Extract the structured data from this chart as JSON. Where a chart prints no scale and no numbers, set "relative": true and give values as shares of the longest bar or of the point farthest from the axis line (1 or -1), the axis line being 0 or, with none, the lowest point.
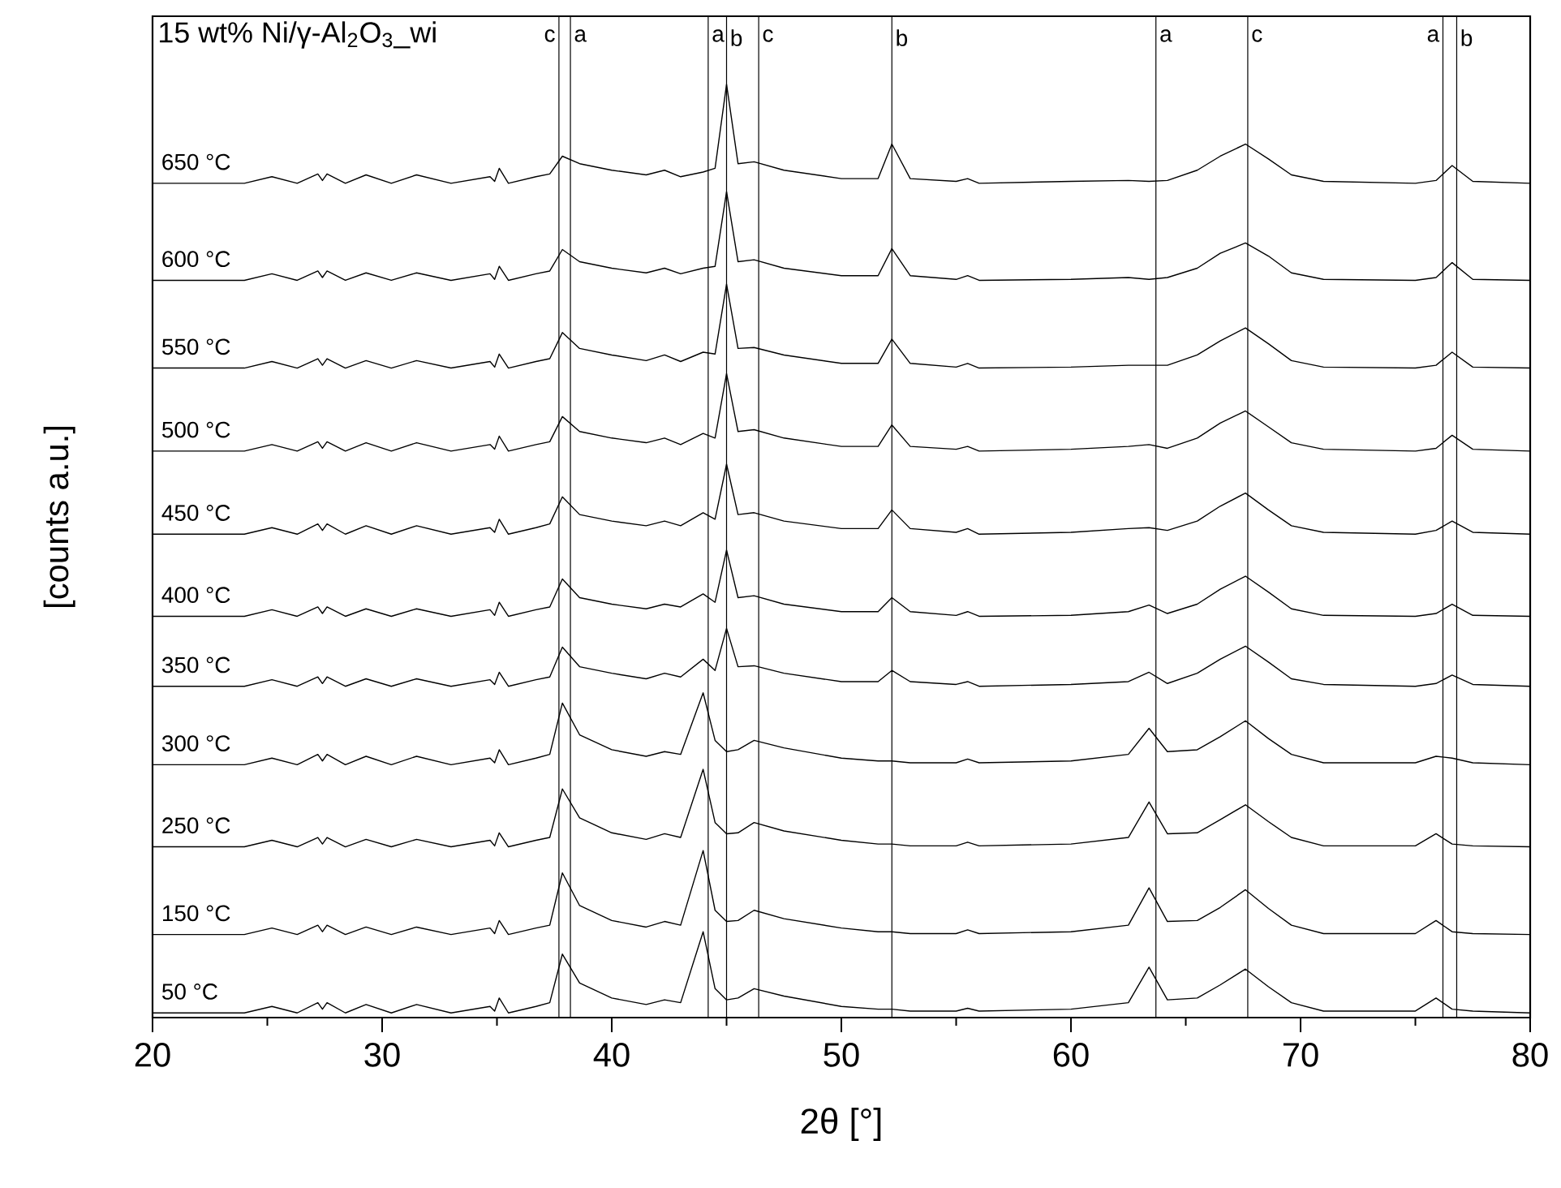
{
  "chart_data": {
    "type": "line",
    "title": "15 wt% Ni/γ-Al$_{2}$O$_{3}$_wi",
    "xlabel": "2θ [°]",
    "ylabel": "[counts a.u.]",
    "relative": true,
    "tick_labels": "x",
    "xlim": [
      20,
      80
    ],
    "xticks": [
      20,
      {
        "value": 25,
        "label": null
      },
      30,
      {
        "value": 35,
        "label": null
      },
      40,
      {
        "value": 45,
        "label": null
      },
      50,
      {
        "value": 55,
        "label": null
      },
      60,
      {
        "value": 65,
        "label": null
      },
      70,
      {
        "value": 75,
        "label": null
      },
      80
    ],
    "x": [
      20,
      24,
      25.2,
      26.3,
      27.2,
      27.4,
      27.6,
      28.4,
      29.3,
      30.4,
      31.5,
      33.0,
      34.7,
      34.9,
      35.1,
      35.5,
      36.7,
      37.3,
      37.85,
      38.6,
      40.0,
      41.5,
      42.3,
      43.0,
      43.98,
      44.5,
      45.0,
      45.5,
      46.2,
      47.5,
      50.0,
      51.6,
      52.2,
      53.0,
      55.0,
      55.5,
      56.0,
      60.0,
      62.5,
      63.4,
      64.2,
      65.5,
      66.5,
      67.6,
      68.6,
      69.6,
      71.0,
      75.0,
      75.9,
      76.6,
      77.5,
      80
    ],
    "series": [
      {
        "name": "650 °C",
        "color": "#000000",
        "values": [
          0.894,
          0.894,
          0.901,
          0.894,
          0.904,
          0.897,
          0.904,
          0.894,
          0.903,
          0.894,
          0.903,
          0.894,
          0.901,
          0.896,
          0.91,
          0.894,
          0.901,
          0.904,
          0.923,
          0.915,
          0.908,
          0.903,
          0.908,
          0.901,
          0.906,
          0.91,
          1.0,
          0.915,
          0.917,
          0.908,
          0.899,
          0.899,
          0.936,
          0.899,
          0.896,
          0.899,
          0.894,
          0.896,
          0.897,
          0.896,
          0.897,
          0.908,
          0.923,
          0.936,
          0.92,
          0.903,
          0.896,
          0.894,
          0.897,
          0.913,
          0.896,
          0.894
        ]
      },
      {
        "name": "600 °C",
        "color": "#000000",
        "values": [
          0.79,
          0.79,
          0.797,
          0.79,
          0.8,
          0.793,
          0.8,
          0.79,
          0.798,
          0.79,
          0.798,
          0.79,
          0.797,
          0.791,
          0.805,
          0.79,
          0.797,
          0.8,
          0.823,
          0.81,
          0.803,
          0.798,
          0.803,
          0.797,
          0.803,
          0.805,
          0.885,
          0.81,
          0.812,
          0.803,
          0.795,
          0.795,
          0.824,
          0.795,
          0.791,
          0.795,
          0.79,
          0.791,
          0.793,
          0.791,
          0.793,
          0.803,
          0.819,
          0.83,
          0.816,
          0.798,
          0.791,
          0.79,
          0.793,
          0.809,
          0.791,
          0.79
        ]
      },
      {
        "name": "550 °C",
        "color": "#000000",
        "values": [
          0.696,
          0.696,
          0.703,
          0.696,
          0.706,
          0.699,
          0.706,
          0.696,
          0.704,
          0.696,
          0.704,
          0.696,
          0.703,
          0.697,
          0.711,
          0.696,
          0.703,
          0.706,
          0.734,
          0.717,
          0.71,
          0.704,
          0.71,
          0.703,
          0.713,
          0.711,
          0.786,
          0.717,
          0.718,
          0.71,
          0.701,
          0.701,
          0.727,
          0.701,
          0.697,
          0.701,
          0.696,
          0.697,
          0.699,
          0.699,
          0.699,
          0.71,
          0.725,
          0.739,
          0.722,
          0.704,
          0.697,
          0.696,
          0.699,
          0.713,
          0.697,
          0.696
        ]
      },
      {
        "name": "500 °C",
        "color": "#000000",
        "values": [
          0.607,
          0.607,
          0.614,
          0.607,
          0.617,
          0.61,
          0.617,
          0.607,
          0.616,
          0.607,
          0.616,
          0.607,
          0.614,
          0.609,
          0.623,
          0.607,
          0.614,
          0.617,
          0.644,
          0.628,
          0.621,
          0.616,
          0.621,
          0.614,
          0.626,
          0.621,
          0.69,
          0.628,
          0.63,
          0.621,
          0.612,
          0.612,
          0.635,
          0.612,
          0.609,
          0.612,
          0.607,
          0.609,
          0.612,
          0.614,
          0.61,
          0.621,
          0.637,
          0.65,
          0.633,
          0.616,
          0.609,
          0.607,
          0.61,
          0.624,
          0.609,
          0.607
        ]
      },
      {
        "name": "450 °C",
        "color": "#000000",
        "values": [
          0.518,
          0.518,
          0.525,
          0.518,
          0.529,
          0.522,
          0.529,
          0.518,
          0.527,
          0.518,
          0.527,
          0.518,
          0.525,
          0.52,
          0.534,
          0.518,
          0.525,
          0.529,
          0.558,
          0.539,
          0.532,
          0.527,
          0.532,
          0.527,
          0.541,
          0.534,
          0.593,
          0.539,
          0.541,
          0.532,
          0.524,
          0.524,
          0.544,
          0.524,
          0.52,
          0.524,
          0.518,
          0.52,
          0.524,
          0.525,
          0.522,
          0.532,
          0.548,
          0.562,
          0.544,
          0.527,
          0.52,
          0.518,
          0.522,
          0.532,
          0.52,
          0.518
        ]
      },
      {
        "name": "400 °C",
        "color": "#000000",
        "values": [
          0.43,
          0.43,
          0.437,
          0.43,
          0.44,
          0.433,
          0.44,
          0.43,
          0.438,
          0.43,
          0.438,
          0.43,
          0.437,
          0.431,
          0.445,
          0.43,
          0.437,
          0.44,
          0.47,
          0.45,
          0.443,
          0.438,
          0.443,
          0.44,
          0.454,
          0.445,
          0.501,
          0.45,
          0.452,
          0.443,
          0.435,
          0.435,
          0.45,
          0.435,
          0.431,
          0.435,
          0.43,
          0.431,
          0.435,
          0.442,
          0.433,
          0.443,
          0.459,
          0.473,
          0.456,
          0.438,
          0.431,
          0.43,
          0.433,
          0.443,
          0.431,
          0.43
        ]
      },
      {
        "name": "350 °C",
        "color": "#000000",
        "values": [
          0.355,
          0.355,
          0.362,
          0.355,
          0.365,
          0.358,
          0.365,
          0.355,
          0.363,
          0.355,
          0.363,
          0.355,
          0.362,
          0.357,
          0.37,
          0.355,
          0.362,
          0.365,
          0.397,
          0.376,
          0.369,
          0.363,
          0.369,
          0.365,
          0.384,
          0.372,
          0.417,
          0.376,
          0.377,
          0.369,
          0.36,
          0.36,
          0.372,
          0.36,
          0.357,
          0.36,
          0.355,
          0.357,
          0.36,
          0.37,
          0.358,
          0.369,
          0.384,
          0.398,
          0.381,
          0.363,
          0.357,
          0.355,
          0.358,
          0.367,
          0.357,
          0.355
        ]
      },
      {
        "name": "300 °C",
        "color": "#000000",
        "values": [
          0.271,
          0.271,
          0.278,
          0.271,
          0.282,
          0.275,
          0.282,
          0.271,
          0.28,
          0.271,
          0.28,
          0.271,
          0.278,
          0.273,
          0.287,
          0.271,
          0.278,
          0.282,
          0.337,
          0.303,
          0.287,
          0.28,
          0.285,
          0.282,
          0.348,
          0.297,
          0.285,
          0.287,
          0.297,
          0.289,
          0.278,
          0.275,
          0.275,
          0.273,
          0.273,
          0.277,
          0.273,
          0.275,
          0.282,
          0.31,
          0.285,
          0.287,
          0.301,
          0.318,
          0.299,
          0.282,
          0.273,
          0.273,
          0.28,
          0.278,
          0.273,
          0.271
        ]
      },
      {
        "name": "250 °C",
        "color": "#000000",
        "values": [
          0.183,
          0.183,
          0.19,
          0.183,
          0.193,
          0.186,
          0.193,
          0.183,
          0.191,
          0.183,
          0.191,
          0.183,
          0.19,
          0.184,
          0.198,
          0.183,
          0.19,
          0.193,
          0.245,
          0.214,
          0.198,
          0.191,
          0.197,
          0.193,
          0.266,
          0.209,
          0.197,
          0.198,
          0.209,
          0.2,
          0.19,
          0.186,
          0.186,
          0.184,
          0.184,
          0.188,
          0.184,
          0.186,
          0.193,
          0.231,
          0.197,
          0.198,
          0.212,
          0.228,
          0.21,
          0.193,
          0.184,
          0.184,
          0.197,
          0.186,
          0.184,
          0.183
        ]
      },
      {
        "name": "150 °C",
        "color": "#000000",
        "values": [
          0.089,
          0.089,
          0.096,
          0.089,
          0.099,
          0.092,
          0.099,
          0.089,
          0.097,
          0.089,
          0.097,
          0.089,
          0.096,
          0.09,
          0.104,
          0.089,
          0.096,
          0.099,
          0.155,
          0.12,
          0.104,
          0.097,
          0.103,
          0.099,
          0.179,
          0.115,
          0.103,
          0.104,
          0.115,
          0.106,
          0.096,
          0.092,
          0.092,
          0.09,
          0.09,
          0.094,
          0.09,
          0.092,
          0.099,
          0.139,
          0.103,
          0.104,
          0.118,
          0.137,
          0.117,
          0.099,
          0.09,
          0.09,
          0.104,
          0.092,
          0.09,
          0.089
        ]
      },
      {
        "name": "50 °C",
        "color": "#000000",
        "values": [
          0.005,
          0.005,
          0.012,
          0.005,
          0.016,
          0.009,
          0.016,
          0.005,
          0.014,
          0.005,
          0.014,
          0.005,
          0.012,
          0.007,
          0.021,
          0.005,
          0.012,
          0.016,
          0.068,
          0.037,
          0.021,
          0.014,
          0.019,
          0.016,
          0.092,
          0.031,
          0.019,
          0.021,
          0.031,
          0.023,
          0.012,
          0.009,
          0.009,
          0.007,
          0.007,
          0.01,
          0.007,
          0.009,
          0.016,
          0.054,
          0.019,
          0.021,
          0.035,
          0.052,
          0.033,
          0.016,
          0.007,
          0.007,
          0.021,
          0.009,
          0.007,
          0.005
        ]
      }
    ],
    "ref_lines": [
      {
        "axis": "x",
        "value": 37.7,
        "label": "c"
      },
      {
        "axis": "x",
        "value": 38.2,
        "label": "a"
      },
      {
        "axis": "x",
        "value": 44.2,
        "label": "a"
      },
      {
        "axis": "x",
        "value": 45.0,
        "label": "b"
      },
      {
        "axis": "x",
        "value": 46.4,
        "label": "c"
      },
      {
        "axis": "x",
        "value": 52.2,
        "label": "b"
      },
      {
        "axis": "x",
        "value": 63.7,
        "label": "a"
      },
      {
        "axis": "x",
        "value": 67.7,
        "label": "c"
      },
      {
        "axis": "x",
        "value": 76.2,
        "label": "a"
      },
      {
        "axis": "x",
        "value": 76.8,
        "label": "b"
      }
    ]
  }
}
